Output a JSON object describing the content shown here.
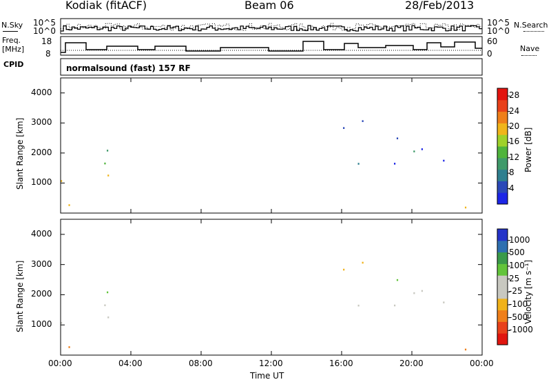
{
  "header": {
    "station": "Kodiak (fitACF)",
    "beam": "Beam 06",
    "date": "28/Feb/2013"
  },
  "strip": {
    "left_labels": {
      "nsky": "N.Sky",
      "freq_line1": "Freq.",
      "freq_line2": "[MHz]",
      "cpid": "CPID"
    },
    "right_labels": {
      "nsearch": "N.Search",
      "nave": "Nave"
    },
    "nsky_ticks": [
      "10^5",
      "10^0"
    ],
    "nsearch_ticks": [
      "10^5",
      "10^0"
    ],
    "freq_ticks": [
      "18",
      "8"
    ],
    "nave_ticks": [
      "60",
      "0"
    ],
    "cpid_text": "normalsound (fast) 157 RF"
  },
  "colors": {
    "power": [
      "#1c25e6",
      "#2a48b8",
      "#2e7f8f",
      "#3f9a6a",
      "#4fb43c",
      "#9fd12a",
      "#f0b51a",
      "#ef7f1a",
      "#e8411a",
      "#e3140f"
    ],
    "velocity": [
      "#2433c8",
      "#2e6fb0",
      "#3a9a4a",
      "#62c43a",
      "#c8c8c0",
      "#c8c8c0",
      "#f0b21a",
      "#ef7f1a",
      "#e8411a",
      "#e0160f"
    ]
  },
  "chart_data": [
    {
      "type": "heatmap",
      "title": "Power",
      "xlabel": "Time UT",
      "ylabel": "Slant Range [km]",
      "x_ticks": [
        "00:00",
        "04:00",
        "08:00",
        "12:00",
        "16:00",
        "20:00",
        "00:00"
      ],
      "xlim_hours": [
        0,
        24
      ],
      "ylim": [
        0,
        4500
      ],
      "y_ticks": [
        1000,
        2000,
        3000,
        4000
      ],
      "colorbar": {
        "label": "Power [dB]",
        "ticks": [
          4,
          8,
          12,
          16,
          20,
          24,
          28
        ],
        "range": [
          0,
          30
        ]
      }
    },
    {
      "type": "heatmap",
      "title": "Velocity",
      "xlabel": "Time UT",
      "ylabel": "Slant Range [km]",
      "x_ticks": [
        "00:00",
        "04:00",
        "08:00",
        "12:00",
        "16:00",
        "20:00",
        "00:00"
      ],
      "xlim_hours": [
        0,
        24
      ],
      "ylim": [
        0,
        4500
      ],
      "y_ticks": [
        1000,
        2000,
        3000,
        4000
      ],
      "colorbar": {
        "label": "Velocity [m s⁻¹]",
        "ticks": [
          1000,
          500,
          100,
          25,
          -25,
          -100,
          -500,
          -1000
        ]
      }
    }
  ]
}
